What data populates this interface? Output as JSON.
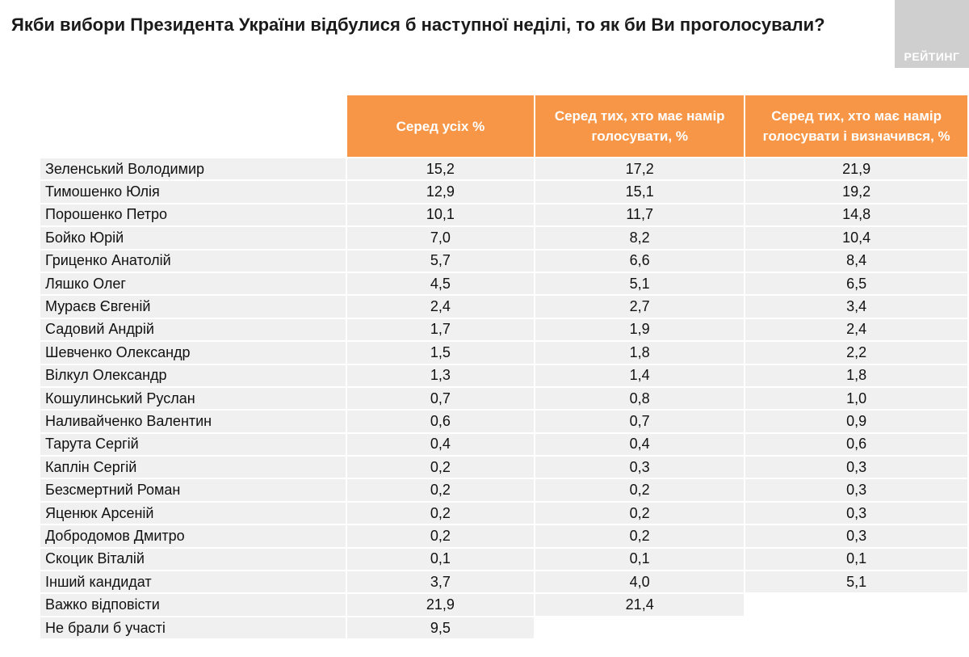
{
  "title": "Якби вибори Президента України відбулися б наступної неділі, то як би Ви проголосували?",
  "logo": "РЕЙТИНГ",
  "colors": {
    "header": "#f79646",
    "cell": "#f0f0f0"
  },
  "chart_data": {
    "type": "table",
    "columns": [
      "Серед усіх %",
      "Серед тих, хто має намір голосувати, %",
      "Серед тих, хто має намір голосувати і визначився, %"
    ],
    "rows": [
      {
        "label": "Зеленський Володимир",
        "values": [
          "15,2",
          "17,2",
          "21,9"
        ]
      },
      {
        "label": "Тимошенко Юлія",
        "values": [
          "12,9",
          "15,1",
          "19,2"
        ]
      },
      {
        "label": "Порошенко Петро",
        "values": [
          "10,1",
          "11,7",
          "14,8"
        ]
      },
      {
        "label": "Бойко Юрій",
        "values": [
          "7,0",
          "8,2",
          "10,4"
        ]
      },
      {
        "label": "Гриценко Анатолій",
        "values": [
          "5,7",
          "6,6",
          "8,4"
        ]
      },
      {
        "label": "Ляшко Олег",
        "values": [
          "4,5",
          "5,1",
          "6,5"
        ]
      },
      {
        "label": "Мураєв Євгеній",
        "values": [
          "2,4",
          "2,7",
          "3,4"
        ]
      },
      {
        "label": "Садовий Андрій",
        "values": [
          "1,7",
          "1,9",
          "2,4"
        ]
      },
      {
        "label": "Шевченко Олександр",
        "values": [
          "1,5",
          "1,8",
          "2,2"
        ]
      },
      {
        "label": "Вілкул Олександр",
        "values": [
          "1,3",
          "1,4",
          "1,8"
        ]
      },
      {
        "label": "Кошулинський Руслан",
        "values": [
          "0,7",
          "0,8",
          "1,0"
        ]
      },
      {
        "label": "Наливайченко Валентин",
        "values": [
          "0,6",
          "0,7",
          "0,9"
        ]
      },
      {
        "label": "Тарута Сергій",
        "values": [
          "0,4",
          "0,4",
          "0,6"
        ]
      },
      {
        "label": "Каплін Сергій",
        "values": [
          "0,2",
          "0,3",
          "0,3"
        ]
      },
      {
        "label": "Безсмертний Роман",
        "values": [
          "0,2",
          "0,2",
          "0,3"
        ]
      },
      {
        "label": "Яценюк Арсеній",
        "values": [
          "0,2",
          "0,2",
          "0,3"
        ]
      },
      {
        "label": "Добродомов Дмитро",
        "values": [
          "0,2",
          "0,2",
          "0,3"
        ]
      },
      {
        "label": "Скоцик Віталій",
        "values": [
          "0,1",
          "0,1",
          "0,1"
        ]
      },
      {
        "label": "Інший кандидат",
        "values": [
          "3,7",
          "4,0",
          "5,1"
        ]
      },
      {
        "label": "Важко відповісти",
        "values": [
          "21,9",
          "21,4"
        ]
      },
      {
        "label": "Не брали б участі",
        "values": [
          "9,5"
        ]
      }
    ]
  }
}
